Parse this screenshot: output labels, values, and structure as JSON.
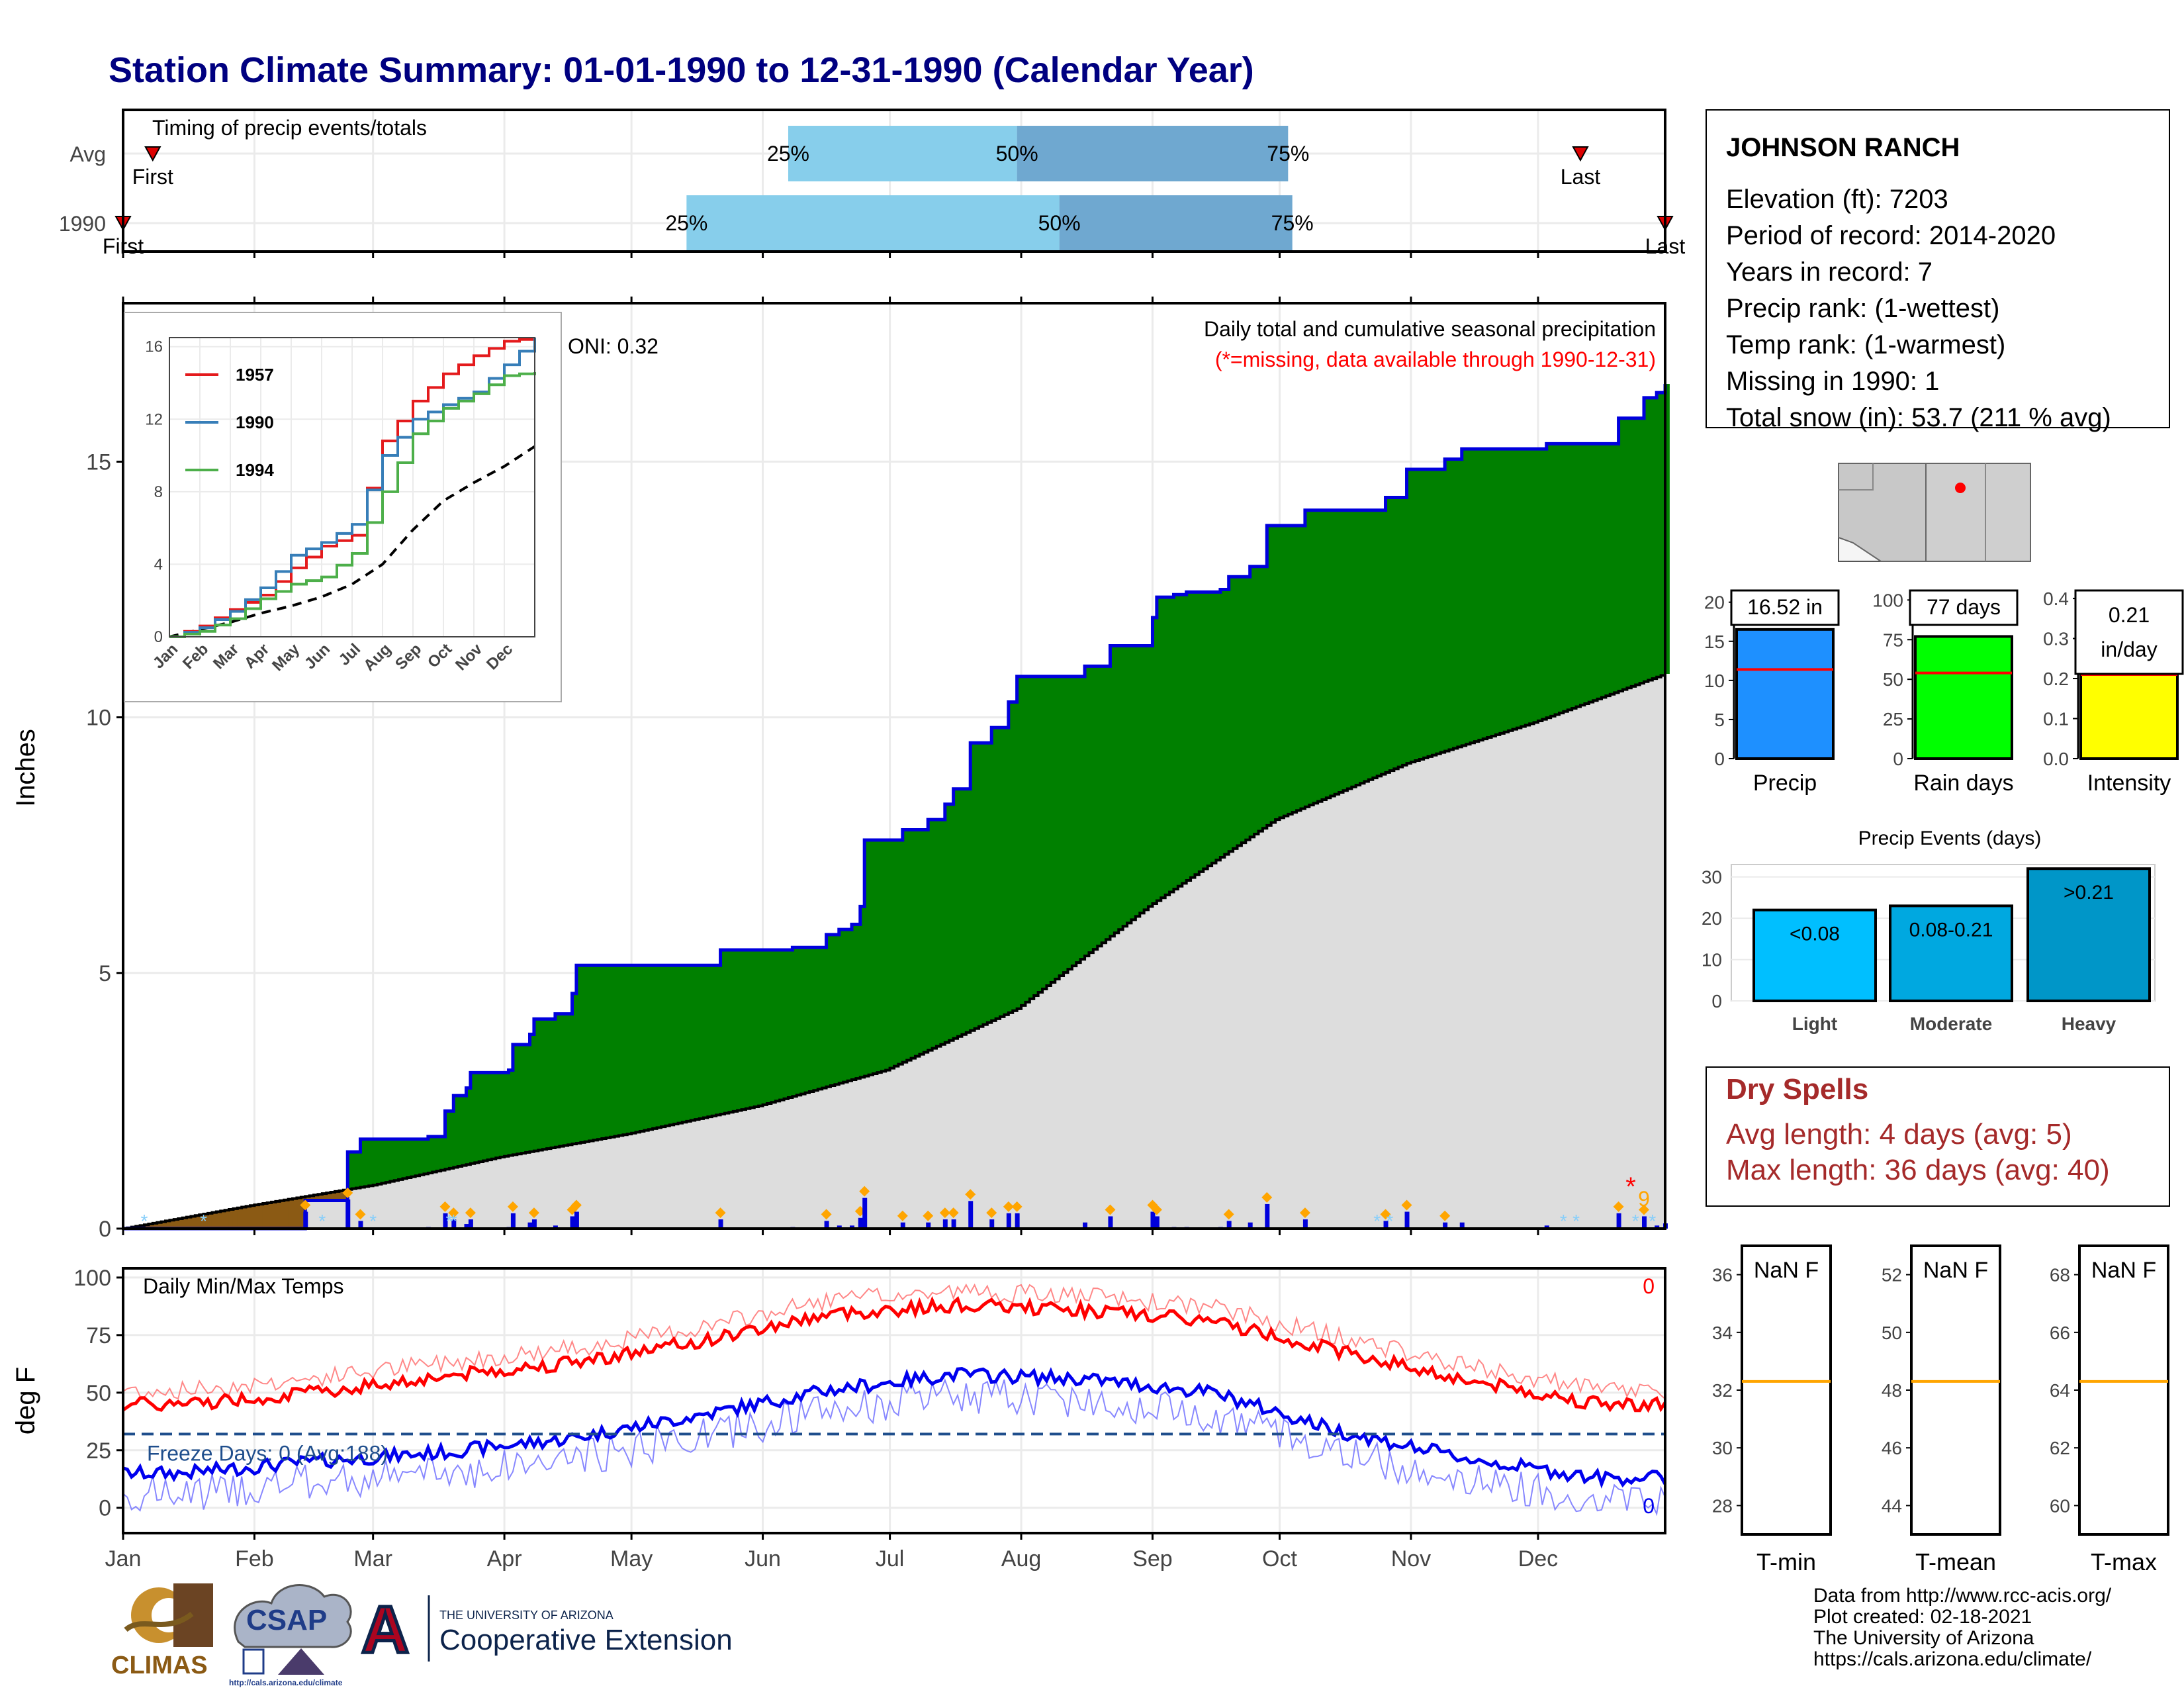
{
  "title": "Station Climate Summary: 01-01-1990 to 12-31-1990 (Calendar Year)",
  "months": [
    "Jan",
    "Feb",
    "Mar",
    "Apr",
    "May",
    "Jun",
    "Jul",
    "Aug",
    "Sep",
    "Oct",
    "Nov",
    "Dec"
  ],
  "timing": {
    "label": "Timing of precip events/totals",
    "rows": [
      {
        "name": "Avg",
        "first_doy": 8,
        "last_doy": 345,
        "p25_doy": 158,
        "p50_doy": 212,
        "p75_doy": 276,
        "first_label": "First",
        "last_label": "Last"
      },
      {
        "name": "1990",
        "first_doy": 1,
        "last_doy": 365,
        "p25_doy": 134,
        "p50_doy": 222,
        "p75_doy": 277,
        "first_label": "First",
        "last_label": "Last"
      }
    ],
    "pct_labels": [
      "25%",
      "50%",
      "75%"
    ],
    "colors": {
      "light": "#87ceeb",
      "dark": "#6fa8d0",
      "marker": "#dd0000"
    }
  },
  "precip": {
    "ylabel": "Inches",
    "title": "Daily total and cumulative seasonal precipitation",
    "missing_note": "(*=missing, data available through 1990-12-31)",
    "oni": "ONI: 0.32",
    "missing_marker": "*",
    "missing_count": "9",
    "yticks": [
      0,
      5,
      10,
      15
    ],
    "ylim": [
      0,
      18.1
    ],
    "colors": {
      "surplus": "#008000",
      "deficit": "#8b5a14",
      "normal": "#dddddd",
      "line": "#0000dd"
    }
  },
  "inset": {
    "yticks": [
      0,
      4,
      8,
      12,
      16
    ],
    "ylim": [
      0,
      16.5
    ],
    "legend": [
      {
        "name": "1957",
        "color": "#e41a1c"
      },
      {
        "name": "1990",
        "color": "#377eb8"
      },
      {
        "name": "1994",
        "color": "#4daf4a"
      }
    ],
    "xticks": [
      "Jan",
      "Feb",
      "Mar",
      "Apr",
      "May",
      "Jun",
      "Jul",
      "Aug",
      "Sep",
      "Oct",
      "Nov",
      "Dec"
    ]
  },
  "temps": {
    "ylabel": "deg F",
    "title": "Daily Min/Max Temps",
    "yticks": [
      0,
      25,
      50,
      75,
      100
    ],
    "ylim": [
      -11,
      104
    ],
    "freeze_line": 32,
    "freeze_label": "Freeze Days: 0 (Avg:188)",
    "max_count": "0",
    "min_count": "0",
    "colors": {
      "max": "#ff0000",
      "min": "#0000ee",
      "freeze": "#1f4e8c"
    }
  },
  "station": {
    "name": "JOHNSON RANCH",
    "lines": [
      "Elevation (ft): 7203",
      "Period of record: 2014-2020",
      "Years in record: 7",
      "Precip rank:  (1-wettest)",
      "Temp rank:  (1-warmest)",
      "Missing in 1990: 1",
      "Total snow (in): 53.7 (211 % avg)"
    ]
  },
  "summary_bars": [
    {
      "name": "Precip",
      "label": "16.52 in",
      "value": 16.52,
      "avg": 11.4,
      "yticks": [
        0,
        5,
        10,
        15,
        20
      ],
      "ymax": 21.5,
      "color": "#1e90ff"
    },
    {
      "name": "Rain days",
      "label": "77 days",
      "value": 77,
      "avg": 54,
      "yticks": [
        0,
        25,
        50,
        75,
        100
      ],
      "ymax": 106,
      "color": "#00ff00"
    },
    {
      "name": "Intensity",
      "label": "0.21 in/day",
      "value": 0.21,
      "avg": 0.21,
      "yticks": [
        "0.0",
        "0.1",
        "0.2",
        "0.3",
        "0.4"
      ],
      "ymax": 0.42,
      "color": "#ffff00"
    }
  ],
  "events": {
    "title": "Precip Events (days)",
    "categories": [
      "Light",
      "Moderate",
      "Heavy"
    ],
    "values": [
      22,
      23,
      32
    ],
    "labels": [
      "<0.08",
      "0.08-0.21",
      ">0.21"
    ],
    "yticks": [
      0,
      10,
      20,
      30
    ],
    "ymax": 33,
    "colors": [
      "#00bfff",
      "#00a8e0",
      "#0096c8"
    ]
  },
  "dry_spells": {
    "title": "Dry Spells",
    "avg_length": "Avg length: 4 days (avg: 5)",
    "max_length": "Max length: 36 days (avg: 40)",
    "color": "#a52a2a"
  },
  "temp_boxes": [
    {
      "name": "T-min",
      "label": "NaN F",
      "yticks": [
        28,
        30,
        32,
        34,
        36
      ],
      "ymin": 27,
      "ymax": 37,
      "avg": 32.3
    },
    {
      "name": "T-mean",
      "label": "NaN F",
      "yticks": [
        44,
        46,
        48,
        50,
        52
      ],
      "ymin": 43,
      "ymax": 53,
      "avg": 48.3
    },
    {
      "name": "T-max",
      "label": "NaN F",
      "yticks": [
        60,
        62,
        64,
        66,
        68
      ],
      "ymin": 59,
      "ymax": 69,
      "avg": 64.3
    }
  ],
  "footer": {
    "lines": [
      "Data from http://www.rcc-acis.org/",
      "Plot created: 02-18-2021",
      "The University of Arizona",
      "https://cals.arizona.edu/climate/"
    ],
    "logos": {
      "climas": "CLIMAS",
      "csap": "CSAP",
      "csap_url": "http://cals.arizona.edu/climate",
      "ua_letter": "A",
      "ua_small": "THE UNIVERSITY OF ARIZONA",
      "ua_big": "Cooperative Extension"
    }
  },
  "chart_data": {
    "type": "area",
    "title": "Daily total and cumulative seasonal precipitation",
    "xlabel": "",
    "ylabel": "Inches",
    "ylim": [
      0,
      18
    ],
    "x_months": [
      "Jan",
      "Feb",
      "Mar",
      "Apr",
      "May",
      "Jun",
      "Jul",
      "Aug",
      "Sep",
      "Oct",
      "Nov",
      "Dec"
    ],
    "cumulative_1990": [
      [
        1,
        0
      ],
      [
        31,
        0
      ],
      [
        55,
        0.55
      ],
      [
        65,
        0.55
      ],
      [
        68,
        1.5
      ],
      [
        72,
        1.75
      ],
      [
        92,
        1.8
      ],
      [
        97,
        2.3
      ],
      [
        100,
        2.6
      ],
      [
        103,
        2.75
      ],
      [
        105,
        3.05
      ],
      [
        117,
        3.1
      ],
      [
        118,
        3.6
      ],
      [
        123,
        3.8
      ],
      [
        124,
        4.1
      ],
      [
        130,
        4.2
      ],
      [
        135,
        4.6
      ],
      [
        137,
        5.15
      ],
      [
        170,
        5.15
      ],
      [
        180,
        5.45
      ],
      [
        202,
        5.5
      ],
      [
        212,
        5.75
      ],
      [
        216,
        5.85
      ],
      [
        220,
        5.95
      ],
      [
        222,
        6.3
      ],
      [
        224,
        7.6
      ],
      [
        235,
        7.8
      ],
      [
        242,
        8.0
      ],
      [
        248,
        8.3
      ],
      [
        250,
        8.6
      ],
      [
        255,
        9.5
      ],
      [
        262,
        9.8
      ],
      [
        267,
        10.3
      ],
      [
        269,
        10.8
      ],
      [
        290,
        11.0
      ],
      [
        298,
        11.4
      ],
      [
        310,
        11.95
      ],
      [
        311,
        12.35
      ],
      [
        317,
        12.4
      ],
      [
        320,
        12.45
      ],
      [
        330,
        12.5
      ],
      [
        333,
        12.75
      ],
      [
        340,
        12.95
      ],
      [
        345,
        13.75
      ],
      [
        356,
        14.05
      ],
      [
        358,
        14.05
      ],
      [
        380,
        14.3
      ],
      [
        387,
        14.85
      ],
      [
        398,
        15.05
      ],
      [
        403,
        15.25
      ],
      [
        429,
        15.35
      ],
      [
        450,
        15.85
      ],
      [
        458,
        16.25
      ],
      [
        462,
        16.35
      ],
      [
        465,
        16.52
      ]
    ],
    "cumulative_avg": [
      [
        1,
        0
      ],
      [
        31,
        0.45
      ],
      [
        60,
        0.85
      ],
      [
        90,
        1.4
      ],
      [
        120,
        1.85
      ],
      [
        151,
        2.4
      ],
      [
        181,
        3.1
      ],
      [
        212,
        4.3
      ],
      [
        243,
        6.3
      ],
      [
        273,
        8.0
      ],
      [
        304,
        9.1
      ],
      [
        334,
        9.9
      ],
      [
        365,
        10.85
      ]
    ],
    "monthly_max_temp_avg": [
      45,
      50,
      57,
      63,
      72,
      84,
      88,
      86,
      81,
      68,
      55,
      45
    ],
    "monthly_min_temp_avg": [
      12,
      17,
      21,
      27,
      37,
      48,
      55,
      53,
      47,
      30,
      18,
      10
    ]
  }
}
